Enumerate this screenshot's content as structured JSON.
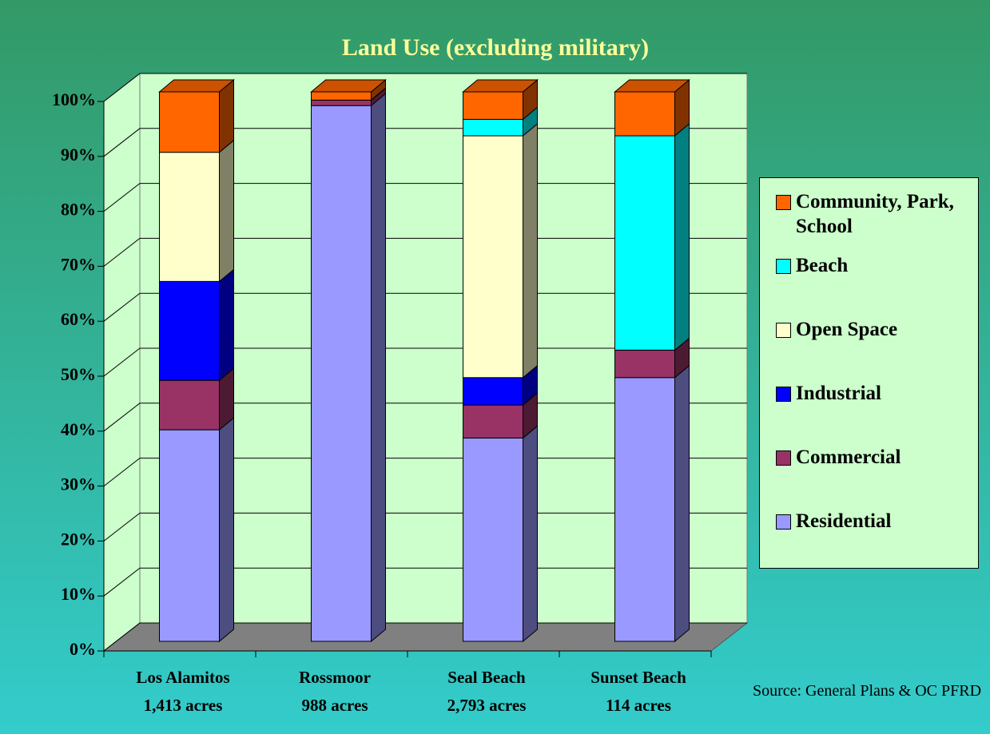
{
  "chart_data": {
    "type": "bar3d_stacked",
    "title": "Land Use (excluding military)",
    "categories": [
      "Los Alamitos",
      "Rossmoor",
      "Seal Beach",
      "Sunset Beach"
    ],
    "category_notes": [
      "1,413 acres",
      "988 acres",
      "2,793 acres",
      "114 acres"
    ],
    "series": [
      {
        "name": "Residential",
        "color": "#9999ff",
        "values": [
          38.5,
          97.5,
          37,
          48
        ]
      },
      {
        "name": "Commercial",
        "color": "#993366",
        "values": [
          9,
          1,
          6,
          5
        ]
      },
      {
        "name": "Industrial",
        "color": "#0000ff",
        "values": [
          18,
          0,
          5,
          0
        ]
      },
      {
        "name": "Open Space",
        "color": "#ffffcc",
        "values": [
          23.5,
          0,
          44,
          0
        ]
      },
      {
        "name": "Beach",
        "color": "#00ffff",
        "values": [
          0,
          0,
          3,
          39
        ]
      },
      {
        "name": "Community, Park, School",
        "color": "#ff6600",
        "values": [
          11,
          1.5,
          5,
          8
        ]
      }
    ],
    "ylim": [
      0,
      100
    ],
    "yticks": [
      {
        "value": 0,
        "label": "0%"
      },
      {
        "value": 10,
        "label": "10%"
      },
      {
        "value": 20,
        "label": "20%"
      },
      {
        "value": 30,
        "label": "30%"
      },
      {
        "value": 40,
        "label": "40%"
      },
      {
        "value": 50,
        "label": "50%"
      },
      {
        "value": 60,
        "label": "60%"
      },
      {
        "value": 70,
        "label": "70%"
      },
      {
        "value": 80,
        "label": "80%"
      },
      {
        "value": 90,
        "label": "90%"
      },
      {
        "value": 100,
        "label": "100%"
      }
    ],
    "grid": true,
    "legend": "right",
    "source": "Source: General Plans & OC PFRD"
  }
}
